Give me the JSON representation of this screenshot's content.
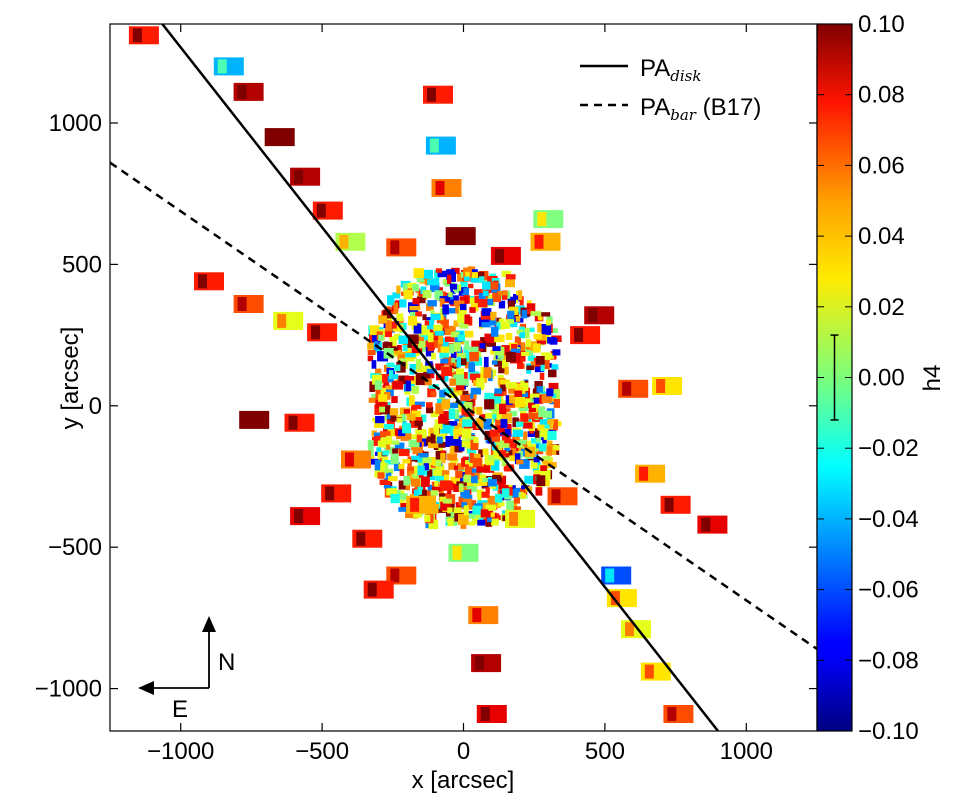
{
  "chart_data": {
    "type": "scatter",
    "title": "",
    "xlabel": "x [arcsec]",
    "ylabel": "y [arcsec]",
    "xlim": [
      -1250,
      1250
    ],
    "ylim": [
      -1150,
      1350
    ],
    "x_ticks": [
      -1000,
      -500,
      0,
      500,
      1000
    ],
    "y_ticks": [
      -1000,
      -500,
      0,
      500,
      1000
    ],
    "x_tick_labels": [
      "−1000",
      "−500",
      "0",
      "500",
      "1000"
    ],
    "y_tick_labels": [
      "−1000",
      "−500",
      "0",
      "500",
      "1000"
    ],
    "color_quantity": "h4",
    "colorbar": {
      "label": "h4",
      "range": [
        -0.1,
        0.1
      ],
      "ticks": [
        0.1,
        0.08,
        0.06,
        0.04,
        0.02,
        0.0,
        -0.02,
        -0.04,
        -0.06,
        -0.08,
        -0.1
      ],
      "tick_labels": [
        "0.10",
        "0.08",
        "0.06",
        "0.04",
        "0.02",
        "0.00",
        "−0.02",
        "−0.04",
        "−0.06",
        "−0.08",
        "−0.10"
      ],
      "errorbar_center": 0.0,
      "errorbar_halfwidth": 0.012
    },
    "legend": {
      "position": "top-right",
      "entries": [
        {
          "label": "PA",
          "sub": "disk",
          "suffix": "",
          "style": "solid"
        },
        {
          "label": "PA",
          "sub": "bar",
          "suffix": " (B17)",
          "style": "dashed"
        }
      ]
    },
    "lines": [
      {
        "name": "PA_disk",
        "style": "solid",
        "x": [
          -1120,
          900
        ],
        "y": [
          1420,
          -1150
        ]
      },
      {
        "name": "PA_bar",
        "style": "dashed",
        "x": [
          -1250,
          1250
        ],
        "y": [
          860,
          -860
        ]
      }
    ],
    "compass": {
      "north_label": "N",
      "east_label": "E"
    },
    "bins": [
      {
        "x": -1130,
        "y": 1310,
        "h4": 0.07
      },
      {
        "x": -830,
        "y": 1200,
        "h4": -0.04
      },
      {
        "x": -760,
        "y": 1110,
        "h4": 0.09
      },
      {
        "x": -650,
        "y": 950,
        "h4": 0.1
      },
      {
        "x": -560,
        "y": 810,
        "h4": 0.09
      },
      {
        "x": -480,
        "y": 690,
        "h4": 0.07
      },
      {
        "x": -400,
        "y": 580,
        "h4": 0.01
      },
      {
        "x": -90,
        "y": 1100,
        "h4": 0.07
      },
      {
        "x": -80,
        "y": 920,
        "h4": -0.04
      },
      {
        "x": -60,
        "y": 770,
        "h4": 0.05
      },
      {
        "x": 300,
        "y": 660,
        "h4": 0.0
      },
      {
        "x": 290,
        "y": 580,
        "h4": 0.04
      },
      {
        "x": -900,
        "y": 440,
        "h4": 0.07
      },
      {
        "x": -760,
        "y": 360,
        "h4": 0.06
      },
      {
        "x": -620,
        "y": 300,
        "h4": 0.02
      },
      {
        "x": -500,
        "y": 260,
        "h4": 0.07
      },
      {
        "x": 480,
        "y": 320,
        "h4": 0.09
      },
      {
        "x": 600,
        "y": 60,
        "h4": 0.06
      },
      {
        "x": 720,
        "y": 70,
        "h4": 0.03
      },
      {
        "x": -740,
        "y": -50,
        "h4": 0.1
      },
      {
        "x": -580,
        "y": -60,
        "h4": 0.07
      },
      {
        "x": -560,
        "y": -390,
        "h4": 0.08
      },
      {
        "x": -450,
        "y": -310,
        "h4": 0.07
      },
      {
        "x": -220,
        "y": 560,
        "h4": 0.06
      },
      {
        "x": 660,
        "y": -240,
        "h4": 0.04
      },
      {
        "x": 750,
        "y": -350,
        "h4": 0.07
      },
      {
        "x": 880,
        "y": -420,
        "h4": 0.08
      },
      {
        "x": -220,
        "y": -600,
        "h4": 0.06
      },
      {
        "x": -300,
        "y": -650,
        "h4": 0.07
      },
      {
        "x": 70,
        "y": -740,
        "h4": 0.05
      },
      {
        "x": 80,
        "y": -910,
        "h4": 0.09
      },
      {
        "x": 100,
        "y": -1090,
        "h4": 0.08
      },
      {
        "x": 540,
        "y": -600,
        "h4": -0.06
      },
      {
        "x": 560,
        "y": -680,
        "h4": 0.03
      },
      {
        "x": 610,
        "y": -790,
        "h4": 0.02
      },
      {
        "x": 680,
        "y": -940,
        "h4": 0.03
      },
      {
        "x": 760,
        "y": -1090,
        "h4": 0.06
      },
      {
        "x": -340,
        "y": -470,
        "h4": 0.07
      },
      {
        "x": -380,
        "y": -190,
        "h4": 0.05
      },
      {
        "x": 0,
        "y": -520,
        "h4": 0.0
      },
      {
        "x": 150,
        "y": 530,
        "h4": 0.08
      },
      {
        "x": 430,
        "y": 250,
        "h4": 0.07
      },
      {
        "x": 350,
        "y": -320,
        "h4": 0.06
      },
      {
        "x": -150,
        "y": -350,
        "h4": 0.04
      },
      {
        "x": 200,
        "y": -400,
        "h4": 0.02
      },
      {
        "x": -10,
        "y": 600,
        "h4": 0.1
      }
    ]
  }
}
